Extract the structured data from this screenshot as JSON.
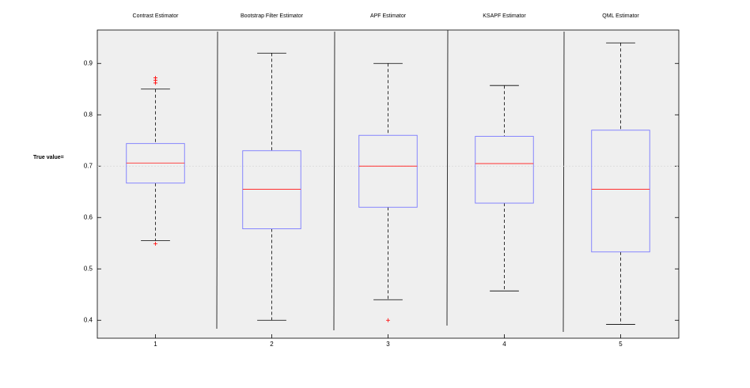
{
  "chart_data": {
    "type": "box",
    "box_titles": [
      "Contrast Estimator",
      "Bootstrap Filter Estimator",
      "APF Estimator",
      "KSAPF Estimator",
      "QML Estimator"
    ],
    "categories": [
      "1",
      "2",
      "3",
      "4",
      "5"
    ],
    "annotation": "True value=",
    "reference_line": 0.7,
    "boxes": [
      {
        "min": 0.555,
        "q1": 0.667,
        "median": 0.706,
        "q3": 0.744,
        "max": 0.85,
        "outliers": [
          0.872,
          0.867,
          0.862,
          0.549
        ]
      },
      {
        "min": 0.4,
        "q1": 0.578,
        "median": 0.655,
        "q3": 0.73,
        "max": 0.92,
        "outliers": []
      },
      {
        "min": 0.44,
        "q1": 0.62,
        "median": 0.7,
        "q3": 0.76,
        "max": 0.9,
        "outliers": [
          0.4
        ]
      },
      {
        "min": 0.457,
        "q1": 0.628,
        "median": 0.705,
        "q3": 0.758,
        "max": 0.857,
        "outliers": []
      },
      {
        "min": 0.392,
        "q1": 0.533,
        "median": 0.655,
        "q3": 0.77,
        "max": 0.94,
        "outliers": []
      }
    ],
    "box_color": "#7a7aff",
    "median_color": "#ff3030",
    "whisker_color": "#000000",
    "outlier_color": "#ff0000",
    "ylim": [
      0.365,
      0.965
    ],
    "yticks": [
      0.4,
      0.5,
      0.6,
      0.7,
      0.8,
      0.9
    ]
  }
}
